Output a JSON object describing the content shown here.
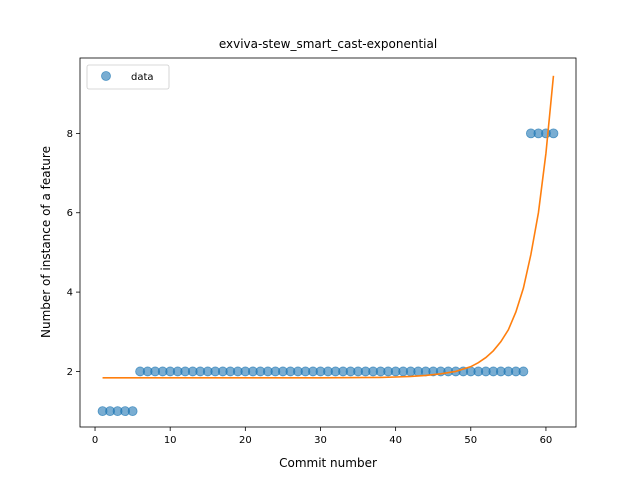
{
  "chart_data": {
    "type": "scatter",
    "title": "exviva-stew_smart_cast-exponential",
    "xlabel": "Commit number",
    "ylabel": "Number of instance of a feature",
    "xlim": [
      -2,
      64
    ],
    "ylim": [
      0.6,
      9.9
    ],
    "xticks": [
      0,
      10,
      20,
      30,
      40,
      50,
      60
    ],
    "yticks": [
      2,
      4,
      6,
      8
    ],
    "legend": {
      "position": "top-left",
      "entries": [
        "data"
      ]
    },
    "grid": false,
    "colors": {
      "data": "#1f77b4",
      "fit": "#ff7f0e"
    },
    "series": [
      {
        "name": "data",
        "kind": "scatter",
        "x": [
          1,
          2,
          3,
          4,
          5,
          6,
          7,
          8,
          9,
          10,
          11,
          12,
          13,
          14,
          15,
          16,
          17,
          18,
          19,
          20,
          21,
          22,
          23,
          24,
          25,
          26,
          27,
          28,
          29,
          30,
          31,
          32,
          33,
          34,
          35,
          36,
          37,
          38,
          39,
          40,
          41,
          42,
          43,
          44,
          45,
          46,
          47,
          48,
          49,
          50,
          51,
          52,
          53,
          54,
          55,
          56,
          57,
          58,
          59,
          60,
          61
        ],
        "y": [
          1,
          1,
          1,
          1,
          1,
          2,
          2,
          2,
          2,
          2,
          2,
          2,
          2,
          2,
          2,
          2,
          2,
          2,
          2,
          2,
          2,
          2,
          2,
          2,
          2,
          2,
          2,
          2,
          2,
          2,
          2,
          2,
          2,
          2,
          2,
          2,
          2,
          2,
          2,
          2,
          2,
          2,
          2,
          2,
          2,
          2,
          2,
          2,
          2,
          2,
          2,
          2,
          2,
          2,
          2,
          2,
          2,
          8,
          8,
          8,
          8
        ]
      },
      {
        "kind": "line",
        "x": [
          1,
          5,
          10,
          15,
          20,
          25,
          30,
          35,
          38,
          40,
          42,
          44,
          46,
          48,
          50,
          51,
          52,
          53,
          54,
          55,
          56,
          57,
          58,
          59,
          60,
          61
        ],
        "y": [
          1.84,
          1.84,
          1.84,
          1.84,
          1.84,
          1.84,
          1.84,
          1.845,
          1.85,
          1.86,
          1.875,
          1.9,
          1.94,
          2.0,
          2.12,
          2.22,
          2.35,
          2.52,
          2.75,
          3.05,
          3.5,
          4.1,
          4.95,
          6.0,
          7.5,
          9.45
        ]
      }
    ]
  }
}
